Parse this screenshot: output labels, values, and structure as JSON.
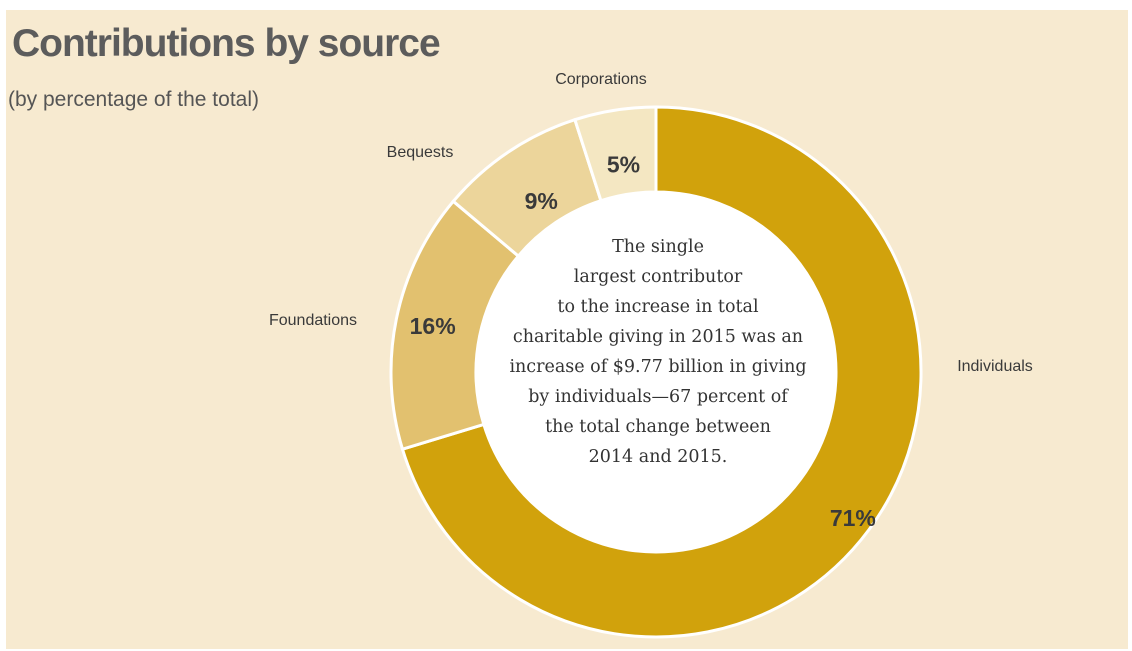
{
  "title": "Contributions by source",
  "subtitle": "(by percentage of the total)",
  "chart_data": {
    "type": "pie",
    "variant": "donut",
    "title": "Contributions by source",
    "subtitle": "(by percentage of the total)",
    "unit": "%",
    "categories": [
      "Individuals",
      "Foundations",
      "Bequests",
      "Corporations"
    ],
    "values": [
      71,
      16,
      9,
      5
    ],
    "value_labels": [
      "71%",
      "16%",
      "9%",
      "5%"
    ],
    "colors": [
      "#d1a20c",
      "#e2c16f",
      "#ecd59b",
      "#f4e7c2"
    ],
    "legend": "none (labels placed beside slices)"
  },
  "callout": {
    "lines": [
      "The single",
      "largest contributor",
      "to the increase in total",
      "charitable giving in 2015 was an",
      "increase of $9.77 billion in giving",
      "by individuals—67 percent of",
      "the total change between",
      "2014 and 2015."
    ]
  },
  "colors": {
    "background": "#f7ead0",
    "title": "#5c5c5c",
    "slice_border": "#ffffff",
    "hole": "#ffffff"
  }
}
